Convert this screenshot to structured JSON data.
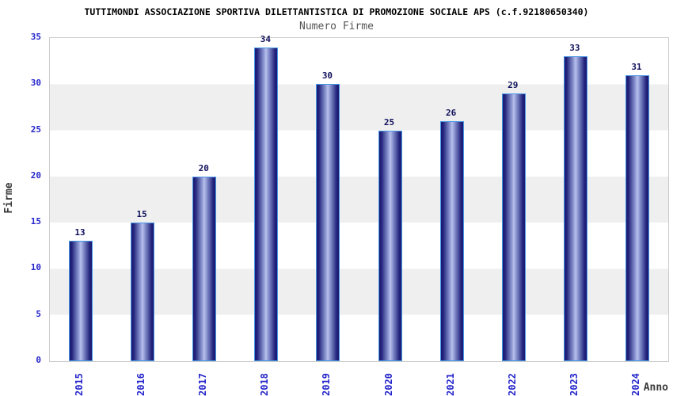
{
  "header": {
    "title": "TUTTIMONDI ASSOCIAZIONE SPORTIVA DILETTANTISTICA DI PROMOZIONE SOCIALE APS (c.f.92180650340)",
    "subtitle": "Numero Firme"
  },
  "chart_data": {
    "type": "bar",
    "title": "Numero Firme",
    "categories": [
      "2015",
      "2016",
      "2017",
      "2018",
      "2019",
      "2020",
      "2021",
      "2022",
      "2023",
      "2024"
    ],
    "values": [
      13,
      15,
      20,
      34,
      30,
      25,
      26,
      29,
      33,
      31
    ],
    "xlabel": "Anno",
    "ylabel": "Firme",
    "ylim": [
      0,
      35
    ],
    "yticks": [
      0,
      5,
      10,
      15,
      20,
      25,
      30,
      35
    ],
    "grid": "horizontal-bands-every-5",
    "legend": "none",
    "bar_labels_shown": true,
    "colors": {
      "tick_label": "#2424cc",
      "value_label": "#10105c",
      "bar_edge": "#1a1a72",
      "bar_mid": "#5b63ab",
      "bar_center_highlight": "#b8c1ec",
      "bar_border": "#4697e6",
      "band_gray": "#efefef",
      "band_white": "#ffffff",
      "plot_border": "#cccccc",
      "axis_title": "#3a3a3a",
      "title": "#000000",
      "subtitle": "#555555"
    }
  }
}
